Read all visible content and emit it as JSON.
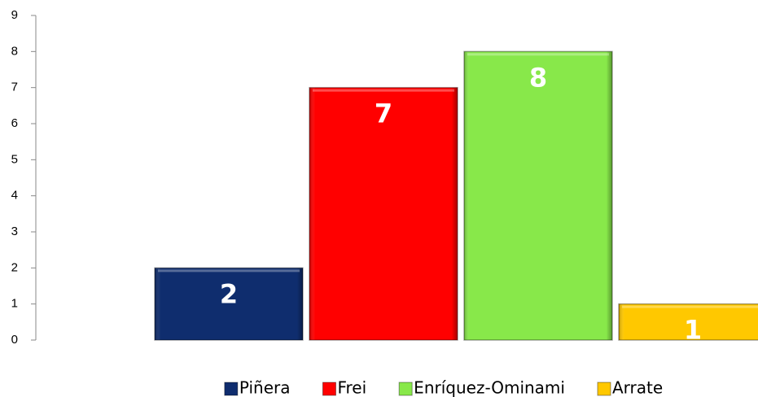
{
  "chart_data": {
    "type": "bar",
    "categories": [
      null
    ],
    "series": [
      {
        "name": "Piñera",
        "color": "#0f2d6e",
        "values": [
          2
        ]
      },
      {
        "name": "Frei",
        "color": "#ff0000",
        "values": [
          7
        ]
      },
      {
        "name": "Enríquez-Ominami",
        "color": "#88e84a",
        "values": [
          8
        ]
      },
      {
        "name": "Arrate",
        "color": "#ffc800",
        "values": [
          1
        ]
      }
    ],
    "ylim": [
      0,
      9
    ],
    "yticks": [
      0,
      1,
      2,
      3,
      4,
      5,
      6,
      7,
      8,
      9
    ],
    "grid": false,
    "legend": "bottom",
    "data_labels": true
  }
}
